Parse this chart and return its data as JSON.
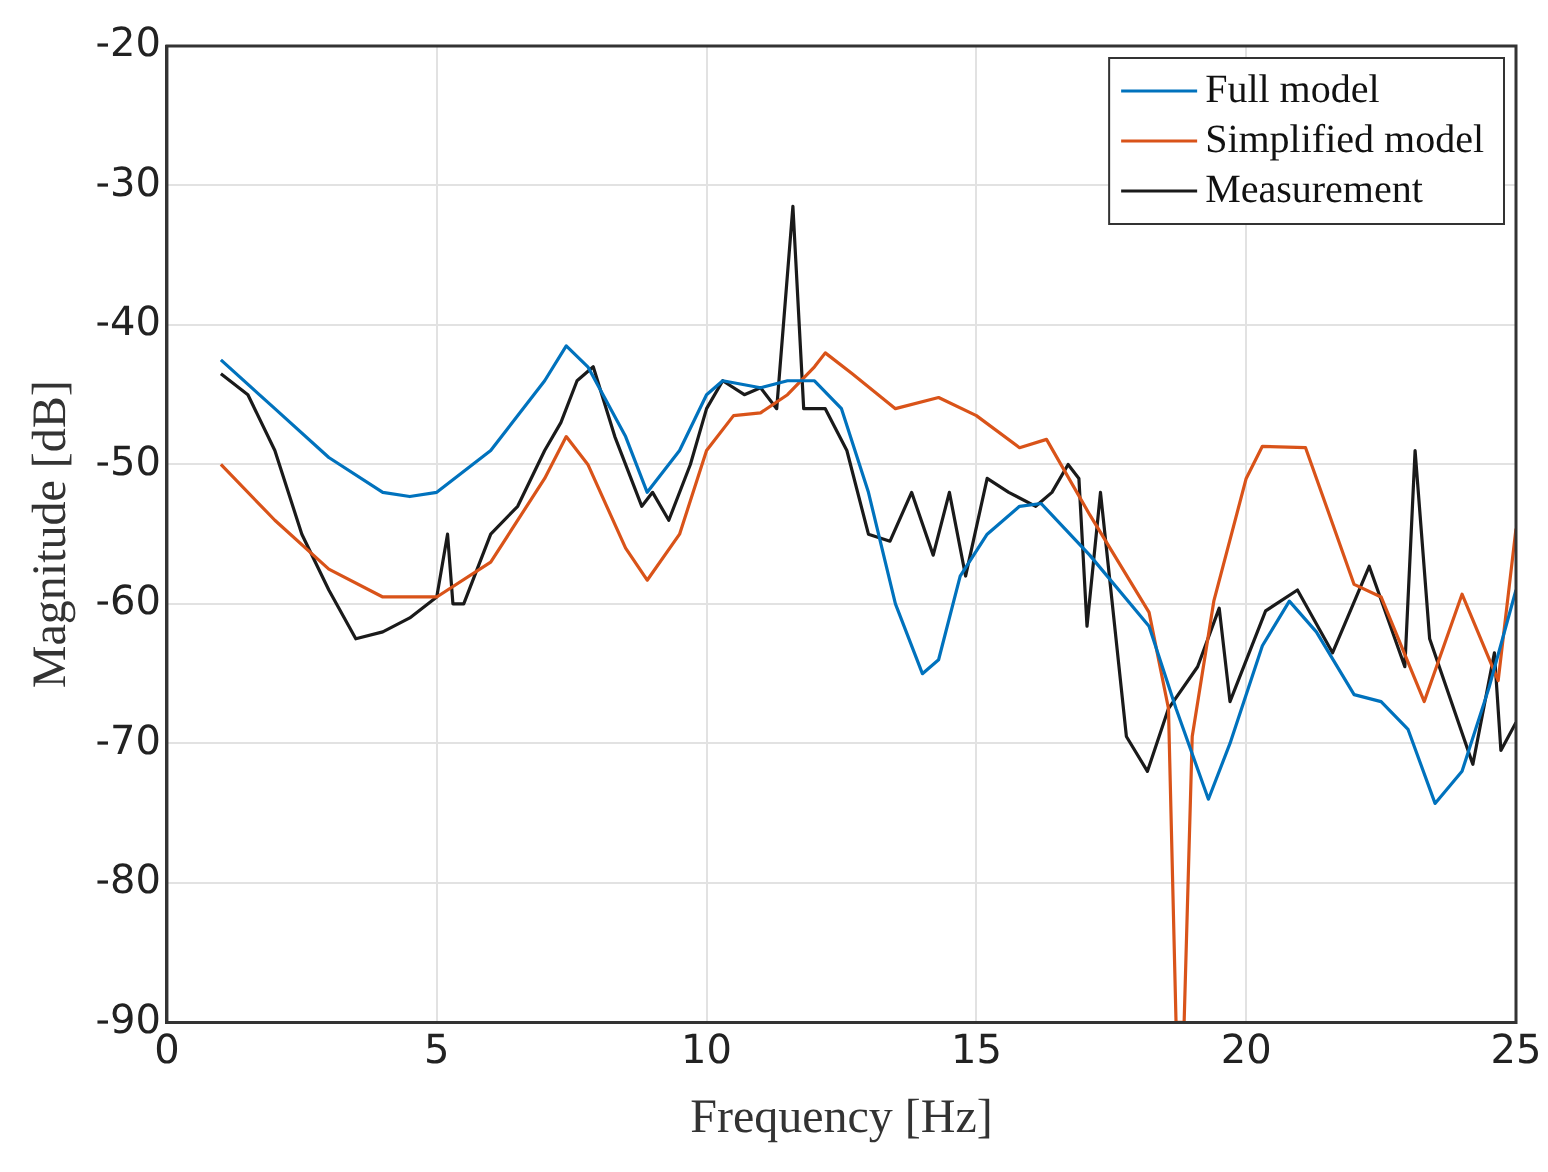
{
  "chart_data": {
    "type": "line",
    "xlabel": "Frequency [Hz]",
    "ylabel": "Magnitude [dB]",
    "xlim": [
      0,
      25
    ],
    "xticks": [
      0,
      5,
      10,
      15,
      20,
      25
    ],
    "ylim": [
      -90,
      -20
    ],
    "yticks": [
      -90,
      -80,
      -70,
      -60,
      -50,
      -40,
      -30,
      -20
    ],
    "grid": true,
    "legend": "top right",
    "marker": "none",
    "line_style": "solid",
    "series": [
      {
        "name": "Full model",
        "color": "#0072bd",
        "x": [
          1,
          2,
          3,
          4,
          4.5,
          5,
          6,
          7,
          7.4,
          7.8,
          8.5,
          8.9,
          9.5,
          10,
          10.3,
          11,
          11.5,
          12,
          12.5,
          13,
          13.5,
          14,
          14.3,
          14.7,
          15.2,
          15.8,
          16.2,
          17.1,
          18.2,
          18.7,
          19.3,
          19.7,
          20.3,
          20.8,
          21.3,
          22,
          22.5,
          23,
          23.5,
          24,
          24.5,
          25
        ],
        "values": [
          -42.5,
          -46,
          -49.5,
          -52,
          -52.3,
          -52,
          -49,
          -44,
          -41.5,
          -43,
          -48,
          -52,
          -49,
          -45,
          -44,
          -44.5,
          -44,
          -44,
          -46,
          -52,
          -60,
          -65,
          -64,
          -58,
          -55,
          -53,
          -52.8,
          -56.5,
          -61.6,
          -67.5,
          -74,
          -70,
          -63,
          -59.8,
          -62,
          -66.5,
          -67,
          -69,
          -74.3,
          -72,
          -66,
          -59
        ]
      },
      {
        "name": "Simplified model",
        "color": "#d95319",
        "x": [
          1,
          2,
          3,
          4,
          5,
          6,
          7,
          7.4,
          7.8,
          8.5,
          8.9,
          9.5,
          10,
          10.5,
          11,
          11.5,
          12,
          12.2,
          12.7,
          13.5,
          14.3,
          15,
          15.8,
          16.3,
          17.1,
          18.2,
          18.56,
          18.7,
          18.85,
          19,
          19.4,
          20,
          20.3,
          21.1,
          22,
          22.5,
          23.3,
          24,
          24.67,
          25
        ],
        "values": [
          -50,
          -54,
          -57.5,
          -59.5,
          -59.5,
          -57,
          -51,
          -48,
          -50,
          -56,
          -58.3,
          -55,
          -49,
          -46.5,
          -46.3,
          -45,
          -43,
          -42,
          -43.5,
          -46,
          -45.2,
          -46.5,
          -48.8,
          -48.2,
          -53.6,
          -60.6,
          -67.5,
          -90,
          -90,
          -69.5,
          -59.8,
          -51,
          -48.7,
          -48.8,
          -58.6,
          -59.5,
          -67,
          -59.3,
          -65.5,
          -54.6
        ]
      },
      {
        "name": "Measurement",
        "color": "#1a1a1a",
        "x": [
          1,
          1.5,
          2,
          2.5,
          3,
          3.5,
          4,
          4.5,
          5,
          5.2,
          5.3,
          5.5,
          6,
          6.5,
          7,
          7.3,
          7.6,
          7.9,
          8.3,
          8.8,
          9,
          9.3,
          9.7,
          10,
          10.3,
          10.7,
          11,
          11.3,
          11.6,
          11.8,
          12.2,
          12.6,
          13,
          13.4,
          13.8,
          14.2,
          14.5,
          14.8,
          15.2,
          15.6,
          16.1,
          16.4,
          16.7,
          16.9,
          17.05,
          17.3,
          17.78,
          18.17,
          18.56,
          19.1,
          19.5,
          19.7,
          20.36,
          20.95,
          21.6,
          22.28,
          22.94,
          23.13,
          23.4,
          24.2,
          24.6,
          24.72,
          25
        ],
        "values": [
          -43.5,
          -45,
          -49,
          -55,
          -59,
          -62.5,
          -62,
          -61,
          -59.5,
          -55,
          -60,
          -60,
          -55,
          -53,
          -49,
          -47,
          -44,
          -43,
          -48,
          -53,
          -52,
          -54,
          -50,
          -46,
          -44,
          -45,
          -44.5,
          -46,
          -31.5,
          -46,
          -46,
          -49,
          -55,
          -55.5,
          -52,
          -56.5,
          -52,
          -58,
          -51,
          -52,
          -53,
          -52,
          -50,
          -51,
          -61.6,
          -52,
          -69.5,
          -72,
          -67.5,
          -64.5,
          -60.3,
          -67,
          -60.5,
          -59,
          -63.5,
          -57.3,
          -64.5,
          -49,
          -62.5,
          -71.5,
          -63.5,
          -70.5,
          -68.5
        ]
      }
    ]
  }
}
